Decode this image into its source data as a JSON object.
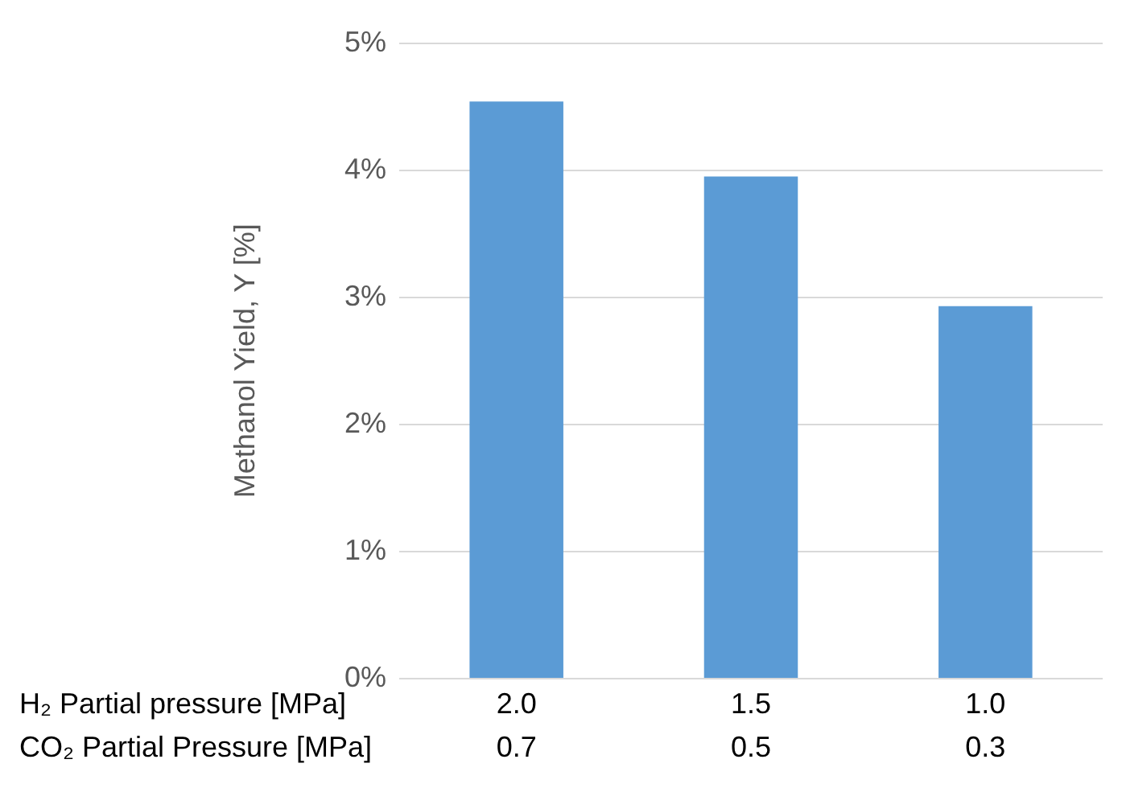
{
  "chart_data": {
    "type": "bar",
    "ylabel": "Methanol Yield, Y [%]",
    "categories": [
      "2.0\n0.7",
      "1.5\n0.5",
      "1.0\n0.3"
    ],
    "values": [
      4.54,
      3.95,
      2.93
    ],
    "color": "#5b9bd5",
    "ylim": [
      0,
      5
    ],
    "yticks": [
      {
        "value": 0,
        "label": "0%"
      },
      {
        "value": 1,
        "label": "1%"
      },
      {
        "value": 2,
        "label": "2%"
      },
      {
        "value": 3,
        "label": "3%"
      },
      {
        "value": 4,
        "label": "4%"
      },
      {
        "value": 5,
        "label": "5%"
      }
    ],
    "grid": "y",
    "annotations": [
      "H₂ Partial pressure [MPa]",
      "CO₂ Partial Pressure [MPa]"
    ]
  }
}
